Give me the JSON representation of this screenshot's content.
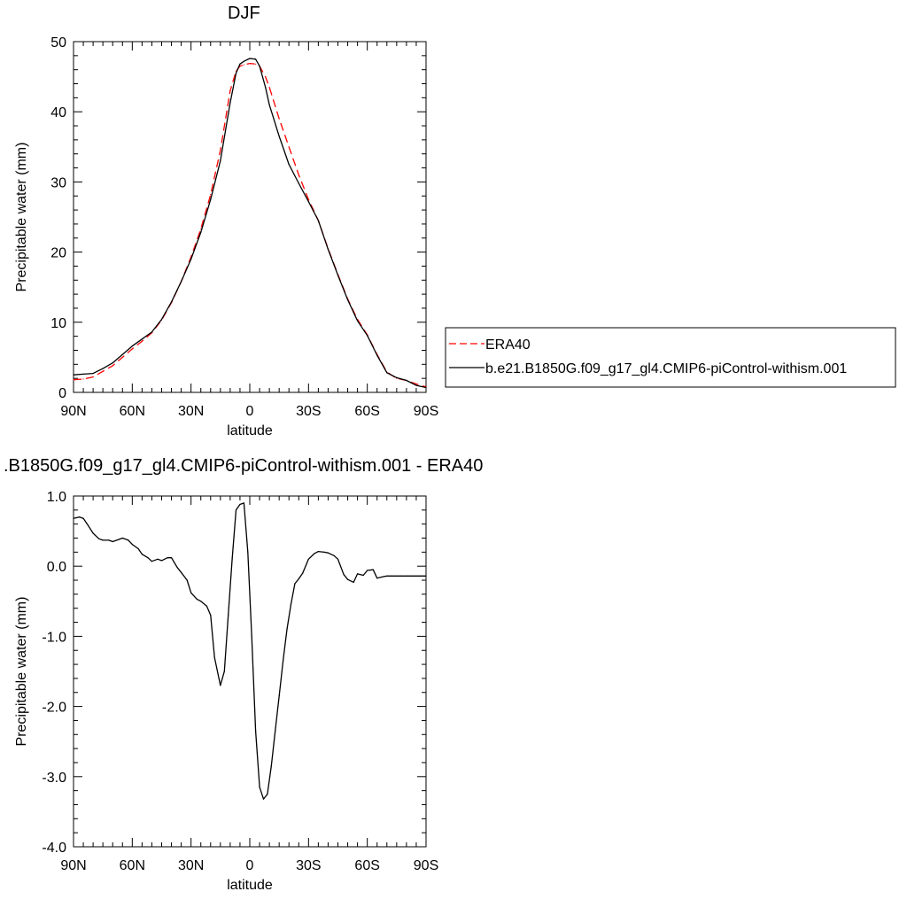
{
  "chart_data": [
    {
      "type": "line",
      "title": "DJF",
      "xlabel": "latitude",
      "ylabel": "Precipitable water (mm)",
      "xlim": [
        90,
        -90
      ],
      "ylim": [
        0,
        50
      ],
      "x_ticks": [
        90,
        60,
        30,
        0,
        -30,
        -60,
        -90
      ],
      "x_tick_labels": [
        "90N",
        "60N",
        "30N",
        "0",
        "30S",
        "60S",
        "90S"
      ],
      "y_ticks": [
        0,
        10,
        20,
        30,
        40,
        50
      ],
      "y_tick_labels": [
        "0",
        "10",
        "20",
        "30",
        "40",
        "50"
      ],
      "grid": false,
      "legend_position": "right, outside",
      "series": [
        {
          "name": "ERA40",
          "color": "#ff0000",
          "dash": "dashed",
          "x": [
            90,
            85,
            80,
            75,
            70,
            65,
            60,
            55,
            50,
            45,
            40,
            35,
            30,
            25,
            20,
            15,
            10,
            7,
            5,
            3,
            0,
            -3,
            -5,
            -8,
            -10,
            -15,
            -20,
            -25,
            -30,
            -35,
            -40,
            -45,
            -50,
            -55,
            -60,
            -65,
            -70,
            -75,
            -80,
            -85,
            -90
          ],
          "y": [
            1.8,
            1.9,
            2.2,
            3.0,
            3.8,
            5.0,
            6.2,
            7.3,
            8.5,
            10.3,
            12.8,
            15.8,
            19.3,
            23.3,
            28.2,
            34.5,
            43.0,
            45.8,
            46.5,
            46.7,
            46.9,
            46.8,
            46.5,
            45.0,
            43.5,
            39.0,
            35.0,
            31.0,
            27.5,
            24.5,
            20.5,
            16.8,
            13.3,
            10.4,
            8.2,
            5.4,
            2.9,
            2.0,
            1.7,
            1.2,
            0.8
          ]
        },
        {
          "name": "b.e21.B1850G.f09_g17_gl4.CMIP6-piControl-withism.001",
          "color": "#000000",
          "dash": "solid",
          "x": [
            90,
            85,
            80,
            75,
            70,
            65,
            60,
            55,
            50,
            45,
            40,
            35,
            30,
            25,
            20,
            15,
            10,
            7,
            5,
            3,
            0,
            -3,
            -5,
            -8,
            -10,
            -15,
            -20,
            -25,
            -30,
            -35,
            -40,
            -45,
            -50,
            -55,
            -60,
            -65,
            -70,
            -75,
            -80,
            -85,
            -90
          ],
          "y": [
            2.5,
            2.6,
            2.7,
            3.4,
            4.2,
            5.4,
            6.6,
            7.6,
            8.6,
            10.4,
            12.9,
            15.8,
            19.0,
            22.8,
            27.5,
            33.0,
            41.3,
            45.5,
            46.8,
            47.2,
            47.6,
            47.5,
            46.5,
            43.5,
            41.0,
            36.5,
            32.5,
            29.8,
            27.2,
            24.5,
            20.4,
            16.7,
            13.2,
            10.2,
            8.1,
            5.3,
            2.8,
            2.1,
            1.7,
            1.0,
            0.7
          ]
        }
      ]
    },
    {
      "type": "line",
      "title": ".B1850G.f09_g17_gl4.CMIP6-piControl-withism.001 - ERA40",
      "xlabel": "latitude",
      "ylabel": "Precipitable water (mm)",
      "xlim": [
        90,
        -90
      ],
      "ylim": [
        -4.0,
        1.0
      ],
      "x_ticks": [
        90,
        60,
        30,
        0,
        -30,
        -60,
        -90
      ],
      "x_tick_labels": [
        "90N",
        "60N",
        "30N",
        "0",
        "30S",
        "60S",
        "90S"
      ],
      "y_ticks": [
        -4,
        -3,
        -2,
        -1,
        0,
        1
      ],
      "y_tick_labels": [
        "-4.0",
        "-3.0",
        "-2.0",
        "-1.0",
        "0.0",
        "1.0"
      ],
      "grid": false,
      "series": [
        {
          "color": "#000000",
          "dash": "solid",
          "x": [
            90,
            87,
            85,
            83,
            80,
            77,
            75,
            72,
            70,
            67,
            65,
            62,
            60,
            57,
            55,
            52,
            50,
            47,
            45,
            42,
            40,
            37,
            35,
            32,
            30,
            27,
            25,
            22,
            20,
            18,
            15,
            13,
            11,
            9,
            7,
            5,
            3,
            1,
            -1,
            -3,
            -5,
            -7,
            -9,
            -11,
            -13,
            -15,
            -17,
            -19,
            -21,
            -23,
            -25,
            -27,
            -30,
            -33,
            -35,
            -38,
            -40,
            -43,
            -45,
            -48,
            -50,
            -53,
            -55,
            -58,
            -60,
            -63,
            -65,
            -68,
            -70,
            -72,
            -75,
            -77,
            -80,
            -83,
            -85,
            -87,
            -90
          ],
          "y": [
            0.68,
            0.7,
            0.68,
            0.6,
            0.47,
            0.39,
            0.37,
            0.37,
            0.35,
            0.38,
            0.4,
            0.37,
            0.31,
            0.25,
            0.17,
            0.12,
            0.07,
            0.1,
            0.08,
            0.12,
            0.12,
            -0.02,
            -0.09,
            -0.2,
            -0.38,
            -0.47,
            -0.5,
            -0.57,
            -0.7,
            -1.3,
            -1.7,
            -1.5,
            -0.7,
            0.1,
            0.8,
            0.88,
            0.9,
            0.2,
            -1.0,
            -2.35,
            -3.15,
            -3.32,
            -3.25,
            -2.85,
            -2.35,
            -1.85,
            -1.35,
            -0.9,
            -0.55,
            -0.25,
            -0.18,
            -0.1,
            0.1,
            0.18,
            0.21,
            0.2,
            0.19,
            0.15,
            0.1,
            -0.12,
            -0.19,
            -0.23,
            -0.11,
            -0.13,
            -0.06,
            -0.05,
            -0.17,
            -0.15,
            -0.14,
            -0.14,
            -0.14,
            -0.14,
            -0.14,
            -0.14,
            -0.14,
            -0.14,
            -0.14
          ]
        }
      ]
    }
  ]
}
